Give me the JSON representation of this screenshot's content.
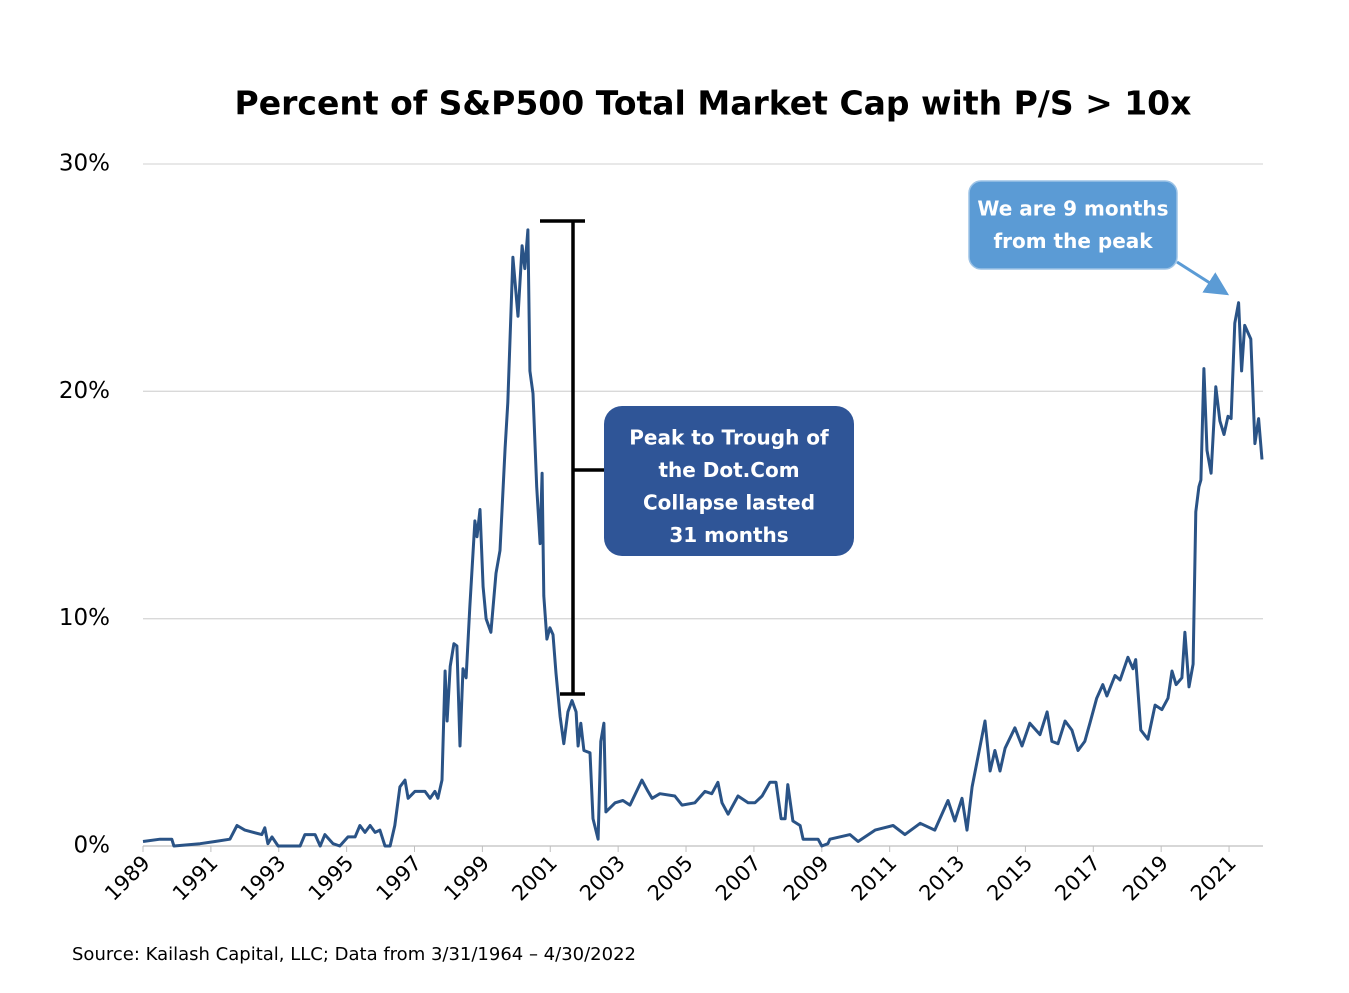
{
  "chart_data": {
    "type": "line",
    "title": "Percent of S&P500 Total Market Cap with P/S > 10x",
    "source": "Source: Kailash Capital, LLC; Data from 3/31/1964 – 4/30/2022",
    "color": "#2a5386",
    "grid": true,
    "xlim": [
      1989,
      2022
    ],
    "xticks": [
      1989,
      1991,
      1993,
      1995,
      1997,
      1999,
      2001,
      2003,
      2005,
      2007,
      2009,
      2011,
      2013,
      2015,
      2017,
      2019,
      2021
    ],
    "ylim": [
      0,
      30
    ],
    "yticks": [
      {
        "value": 0,
        "label": "0%"
      },
      {
        "value": 10,
        "label": "10%"
      },
      {
        "value": 20,
        "label": "20%"
      },
      {
        "value": 30,
        "label": "30%"
      }
    ],
    "x": [
      1989,
      1989.5,
      1989.85,
      1989.91,
      1990.68,
      1991.12,
      1991.56,
      1991.77,
      1992.0,
      1992.5,
      1992.59,
      1992.68,
      1992.8,
      1992.98,
      1993.63,
      1993.77,
      1994.07,
      1994.22,
      1994.36,
      1994.6,
      1994.8,
      1995.04,
      1995.25,
      1995.39,
      1995.54,
      1995.69,
      1995.84,
      1995.98,
      1996.13,
      1996.28,
      1996.42,
      1996.57,
      1996.72,
      1996.81,
      1997.01,
      1997.31,
      1997.46,
      1997.6,
      1997.69,
      1997.81,
      1997.9,
      1997.96,
      1998.05,
      1998.16,
      1998.25,
      1998.34,
      1998.43,
      1998.52,
      1998.63,
      1998.78,
      1998.84,
      1998.93,
      1999.02,
      1999.11,
      1999.25,
      1999.4,
      1999.52,
      1999.67,
      1999.75,
      1999.9,
      2000.05,
      2000.17,
      2000.25,
      2000.34,
      2000.4,
      2000.49,
      2000.6,
      2000.7,
      2000.76,
      2000.81,
      2000.9,
      2000.99,
      2001.08,
      2001.17,
      2001.29,
      2001.4,
      2001.52,
      2001.64,
      2001.76,
      2001.82,
      2001.9,
      2001.99,
      2002.17,
      2002.26,
      2002.41,
      2002.49,
      2002.58,
      2002.64,
      2002.91,
      2003.14,
      2003.35,
      2003.7,
      2003.88,
      2004.0,
      2004.23,
      2004.67,
      2004.88,
      2005.26,
      2005.56,
      2005.76,
      2005.94,
      2006.06,
      2006.24,
      2006.53,
      2006.83,
      2007.03,
      2007.24,
      2007.47,
      2007.65,
      2007.8,
      2007.92,
      2008.0,
      2008.15,
      2008.36,
      2008.45,
      2008.89,
      2009.0,
      2009.18,
      2009.24,
      2009.83,
      2010.07,
      2010.57,
      2011.1,
      2011.45,
      2011.9,
      2012.33,
      2012.72,
      2012.92,
      2013.13,
      2013.28,
      2013.43,
      2013.81,
      2013.96,
      2014.1,
      2014.25,
      2014.4,
      2014.69,
      2014.9,
      2015.13,
      2015.43,
      2015.64,
      2015.78,
      2015.96,
      2016.17,
      2016.37,
      2016.55,
      2016.75,
      2016.9,
      2017.1,
      2017.28,
      2017.4,
      2017.64,
      2017.79,
      2018.02,
      2018.17,
      2018.25,
      2018.4,
      2018.61,
      2018.82,
      2019.02,
      2019.2,
      2019.32,
      2019.44,
      2019.61,
      2019.7,
      2019.82,
      2019.94,
      2020.02,
      2020.11,
      2020.17,
      2020.26,
      2020.35,
      2020.47,
      2020.61,
      2020.73,
      2020.85,
      2020.97,
      2021.06,
      2021.17,
      2021.28,
      2021.37,
      2021.46,
      2021.64,
      2021.76,
      2021.87,
      2021.97
    ],
    "values": [
      0.2,
      0.3,
      0.3,
      0,
      0.1,
      0.2,
      0.3,
      0.9,
      0.7,
      0.5,
      0.8,
      0.1,
      0.4,
      0,
      0,
      0.5,
      0.5,
      0,
      0.5,
      0.1,
      0,
      0.4,
      0.4,
      0.9,
      0.6,
      0.9,
      0.6,
      0.7,
      0,
      0,
      0.9,
      2.6,
      2.9,
      2.1,
      2.4,
      2.4,
      2.1,
      2.4,
      2.1,
      2.9,
      7.7,
      5.5,
      7.9,
      8.9,
      8.8,
      4.4,
      7.8,
      7.4,
      10.5,
      14.3,
      13.6,
      14.8,
      11.4,
      10,
      9.4,
      12,
      13,
      17.5,
      19.5,
      25.9,
      23.3,
      26.4,
      25.4,
      27.1,
      20.9,
      19.9,
      15.8,
      13.3,
      16.4,
      11,
      9.1,
      9.6,
      9.3,
      7.6,
      5.7,
      4.5,
      5.9,
      6.4,
      5.9,
      4.4,
      5.4,
      4.2,
      4.1,
      1.2,
      0.3,
      4.6,
      5.4,
      1.5,
      1.9,
      2.0,
      1.8,
      2.9,
      2.4,
      2.1,
      2.3,
      2.2,
      1.8,
      1.9,
      2.4,
      2.3,
      2.8,
      1.9,
      1.4,
      2.2,
      1.9,
      1.9,
      2.2,
      2.8,
      2.8,
      1.2,
      1.2,
      2.7,
      1.1,
      0.9,
      0.3,
      0.3,
      0,
      0.1,
      0.3,
      0.5,
      0.2,
      0.7,
      0.9,
      0.5,
      1.0,
      0.7,
      2.0,
      1.1,
      2.1,
      0.7,
      2.6,
      5.5,
      3.3,
      4.2,
      3.3,
      4.3,
      5.2,
      4.4,
      5.4,
      4.9,
      5.9,
      4.6,
      4.5,
      5.5,
      5.1,
      4.2,
      4.6,
      5.4,
      6.5,
      7.1,
      6.6,
      7.5,
      7.3,
      8.3,
      7.8,
      8.2,
      5.1,
      4.7,
      6.2,
      6.0,
      6.5,
      7.7,
      7.1,
      7.4,
      9.4,
      7.0,
      8.0,
      14.7,
      15.8,
      16.1,
      21.0,
      17.4,
      16.4,
      20.2,
      18.7,
      18.1,
      18.9,
      18.8,
      23.0,
      23.9,
      20.9,
      22.9,
      22.3,
      17.7,
      18.8,
      17.0
    ],
    "annotations": [
      {
        "lines": [
          "Peak to Trough of",
          "the Dot.Com",
          "Collapse lasted",
          "31 months"
        ]
      },
      {
        "lines": [
          "We are 9 months",
          "from the peak"
        ]
      }
    ]
  }
}
